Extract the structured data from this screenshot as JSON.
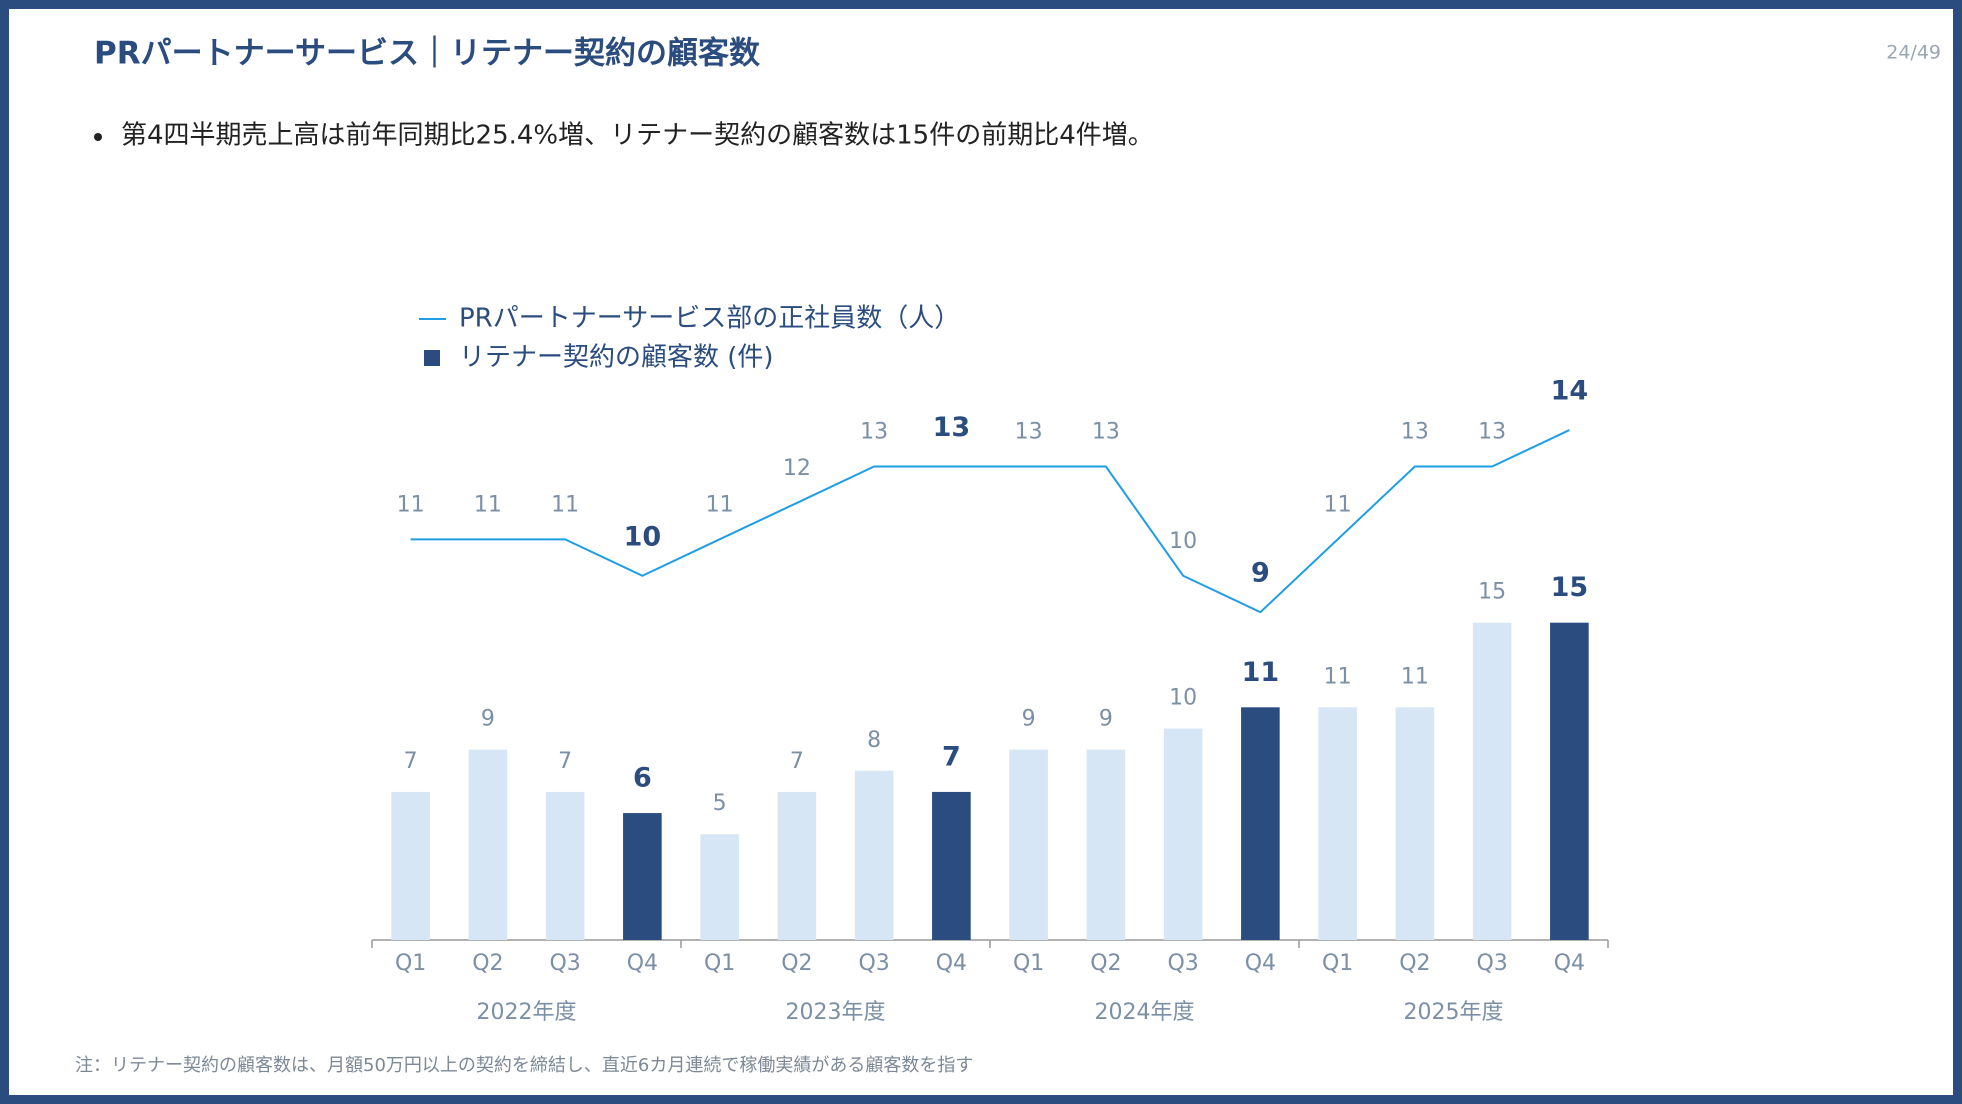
{
  "header": {
    "title": "PRパートナーサービス｜リテナー契約の顧客数",
    "page": "24/49"
  },
  "bullet": "第4四半期売上高は前年同期比25.4%増、リテナー契約の顧客数は15件の前期比4件増。",
  "chart_data": {
    "type": "combo",
    "categories": [
      "Q1",
      "Q2",
      "Q3",
      "Q4",
      "Q1",
      "Q2",
      "Q3",
      "Q4",
      "Q1",
      "Q2",
      "Q3",
      "Q4",
      "Q1",
      "Q2",
      "Q3",
      "Q4"
    ],
    "groups": [
      "2022年度",
      "2023年度",
      "2024年度",
      "2025年度"
    ],
    "series": [
      {
        "name": "PRパートナーサービス部の正社員数（人）",
        "type": "line",
        "axis": "y2",
        "color": "#1f9ee6",
        "values": [
          11,
          11,
          11,
          10,
          11,
          12,
          13,
          13,
          13,
          13,
          10,
          9,
          11,
          13,
          13,
          14
        ]
      },
      {
        "name": "リテナー契約の顧客数 (件)",
        "type": "bar",
        "color": "#2b4c7e",
        "colors": [
          "#d7e6f5",
          "#d7e6f5",
          "#d7e6f5",
          "#2b4c7e",
          "#d7e6f5",
          "#d7e6f5",
          "#d7e6f5",
          "#2b4c7e",
          "#d7e6f5",
          "#d7e6f5",
          "#d7e6f5",
          "#2b4c7e",
          "#d7e6f5",
          "#d7e6f5",
          "#d7e6f5",
          "#2b4c7e"
        ],
        "values": [
          7,
          9,
          7,
          6,
          5,
          7,
          8,
          7,
          9,
          9,
          10,
          11,
          11,
          11,
          15,
          15
        ]
      }
    ],
    "ylim": [
      0,
      26
    ],
    "y2lim": [
      0,
      15.1
    ]
  },
  "footnote": "注：リテナー契約の顧客数は、月額50万円以上の契約を締結し、直近6カ月連続で稼働実績がある顧客数を指す"
}
